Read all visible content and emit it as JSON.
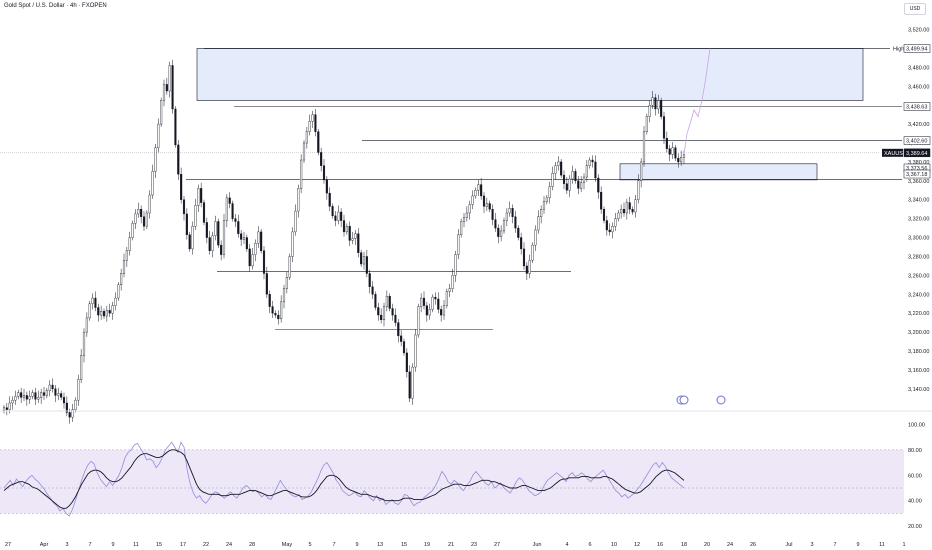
{
  "header": {
    "title": "Gold Spot / U.S. Dollar · 4h · FXOPEN",
    "currency": "USD"
  },
  "colors": {
    "candle": "#131722",
    "zone_fill": "#dbe4f8",
    "zone_stroke": "#131722",
    "rsi_line": "#9c8ad6",
    "rsi_ma": "#131722",
    "rsi_band": "#ede7f8",
    "projection": "#c9a4e8"
  },
  "chart_data": [
    {
      "type": "candlestick",
      "title": "Gold Spot / U.S. Dollar · 4h · FXOPEN",
      "ylim": [
        3125,
        3528
      ],
      "yticks": [
        3140,
        3160,
        3180,
        3200,
        3220,
        3240,
        3260,
        3280,
        3300,
        3320,
        3340,
        3360,
        3380,
        3400,
        3420,
        3440,
        3460,
        3480,
        3500,
        3520
      ],
      "ytick_labels": [
        "3,140.00",
        "3,160.00",
        "3,180.00",
        "3,200.00",
        "3,220.00",
        "3,240.00",
        "3,260.00",
        "3,280.00",
        "3,300.00",
        "3,320.00",
        "3,340.00",
        "3,360.00",
        "3,380.00",
        "3,400.00",
        "3,420.00",
        "3,440.00",
        "3,460.00",
        "3,480.00",
        "3,500.00",
        "3,520.00"
      ],
      "xtick_labels": [
        "27",
        "Apr",
        "3",
        "7",
        "9",
        "11",
        "15",
        "17",
        "22",
        "24",
        "28",
        "May",
        "5",
        "7",
        "9",
        "13",
        "15",
        "19",
        "21",
        "23",
        "27",
        "Jun",
        "4",
        "6",
        "10",
        "12",
        "16",
        "18",
        "20",
        "24",
        "26",
        "Jul",
        "3",
        "7",
        "9",
        "11",
        "1"
      ],
      "xtick_positions": [
        8,
        44,
        67,
        90,
        113,
        136,
        159,
        183,
        206,
        229,
        252,
        287,
        310,
        334,
        357,
        380,
        404,
        427,
        451,
        474,
        497,
        537,
        567,
        590,
        614,
        637,
        660,
        684,
        707,
        730,
        753,
        789,
        812,
        835,
        858,
        882,
        904
      ],
      "close_series": [
        3120,
        3118,
        3125,
        3128,
        3132,
        3136,
        3131,
        3133,
        3129,
        3132,
        3136,
        3129,
        3131,
        3136,
        3133,
        3138,
        3144,
        3140,
        3133,
        3135,
        3131,
        3125,
        3115,
        3110,
        3118,
        3128,
        3150,
        3175,
        3200,
        3215,
        3230,
        3236,
        3226,
        3218,
        3222,
        3217,
        3223,
        3220,
        3228,
        3236,
        3250,
        3262,
        3276,
        3286,
        3300,
        3315,
        3325,
        3330,
        3322,
        3312,
        3326,
        3345,
        3370,
        3395,
        3420,
        3445,
        3462,
        3455,
        3482,
        3436,
        3398,
        3367,
        3340,
        3325,
        3303,
        3288,
        3312,
        3334,
        3352,
        3337,
        3316,
        3300,
        3286,
        3302,
        3317,
        3292,
        3282,
        3318,
        3342,
        3336,
        3320,
        3317,
        3304,
        3298,
        3300,
        3288,
        3270,
        3282,
        3294,
        3306,
        3286,
        3262,
        3240,
        3227,
        3220,
        3218,
        3214,
        3232,
        3246,
        3258,
        3280,
        3306,
        3328,
        3352,
        3382,
        3400,
        3412,
        3423,
        3430,
        3412,
        3390,
        3376,
        3361,
        3347,
        3333,
        3323,
        3318,
        3327,
        3318,
        3306,
        3312,
        3297,
        3299,
        3304,
        3284,
        3272,
        3280,
        3262,
        3248,
        3240,
        3226,
        3218,
        3213,
        3227,
        3238,
        3225,
        3218,
        3210,
        3196,
        3190,
        3178,
        3158,
        3130,
        3163,
        3197,
        3227,
        3236,
        3228,
        3218,
        3224,
        3237,
        3235,
        3224,
        3218,
        3228,
        3243,
        3246,
        3260,
        3282,
        3303,
        3317,
        3321,
        3326,
        3335,
        3344,
        3350,
        3356,
        3344,
        3333,
        3336,
        3330,
        3319,
        3310,
        3301,
        3307,
        3318,
        3326,
        3331,
        3322,
        3310,
        3300,
        3288,
        3270,
        3262,
        3276,
        3292,
        3308,
        3322,
        3330,
        3338,
        3342,
        3354,
        3368,
        3376,
        3380,
        3366,
        3357,
        3350,
        3362,
        3370,
        3360,
        3352,
        3358,
        3364,
        3376,
        3382,
        3380,
        3363,
        3348,
        3330,
        3318,
        3308,
        3306,
        3312,
        3320,
        3326,
        3330,
        3326,
        3337,
        3330,
        3327,
        3340,
        3360,
        3380,
        3412,
        3428,
        3440,
        3448,
        3436,
        3445,
        3428,
        3405,
        3394,
        3388,
        3395,
        3384,
        3380,
        3385,
        3388
      ],
      "zones": [
        {
          "top": 3500,
          "bottom": 3445
        },
        {
          "top": 3378,
          "bottom": 3361
        }
      ],
      "horizontal_levels": [
        3500,
        3438.63,
        3402.6,
        3361.5,
        3264,
        3203
      ],
      "price_labels": [
        {
          "text": "3,499.94",
          "value": 3499.94,
          "prefix": "High"
        },
        {
          "text": "3,438.63",
          "value": 3438.63
        },
        {
          "text": "3,402.60",
          "value": 3402.6
        },
        {
          "text": "3,389.64",
          "value": 3389.64,
          "symbol": "XAUUSD"
        },
        {
          "text": "3,373.56",
          "value": 3373.56
        },
        {
          "text": "3,367.18",
          "value": 3367.18
        }
      ],
      "projection": [
        3388,
        3410,
        3420,
        3435,
        3428,
        3445,
        3470,
        3500
      ]
    },
    {
      "type": "line",
      "title": "RSI",
      "ylim": [
        17,
        105
      ],
      "yticks": [
        20,
        40,
        60,
        80,
        100
      ],
      "ytick_labels": [
        "20.00",
        "40.00",
        "60.00",
        "80.00",
        "100.00"
      ],
      "band": [
        30,
        80
      ],
      "midline": 50,
      "series": [
        {
          "values": [
            50,
            53,
            56,
            52,
            57,
            54,
            51,
            55,
            58,
            60,
            57,
            55,
            52,
            49,
            45,
            42,
            38,
            36,
            32,
            34,
            30,
            28,
            33,
            40,
            48,
            56,
            63,
            68,
            71,
            69,
            62,
            57,
            54,
            51,
            55,
            52,
            56,
            60,
            66,
            74,
            78,
            80,
            84,
            85,
            81,
            77,
            72,
            73,
            71,
            66,
            69,
            74,
            80,
            83,
            86,
            82,
            78,
            86,
            82,
            64,
            53,
            46,
            42,
            44,
            40,
            38,
            41,
            45,
            47,
            46,
            44,
            42,
            45,
            47,
            44,
            42,
            46,
            50,
            52,
            50,
            47,
            48,
            46,
            43,
            45,
            42,
            41,
            46,
            51,
            56,
            52,
            49,
            46,
            44,
            43,
            45,
            41,
            42,
            44,
            47,
            52,
            57,
            63,
            68,
            70,
            66,
            62,
            56,
            53,
            48,
            46,
            44,
            45,
            47,
            44,
            43,
            48,
            45,
            42,
            40,
            44,
            40,
            42,
            37,
            39,
            41,
            38,
            37,
            40,
            45,
            44,
            40,
            36,
            38,
            39,
            42,
            44,
            46,
            48,
            52,
            57,
            63,
            60,
            55,
            53,
            56,
            54,
            50,
            48,
            52,
            55,
            60,
            63,
            60,
            57,
            54,
            52,
            55,
            50,
            52,
            54,
            50,
            48,
            46,
            50,
            55,
            58,
            56,
            52,
            48,
            46,
            44,
            45,
            47,
            52,
            56,
            58,
            60,
            62,
            60,
            58,
            55,
            60,
            62,
            59,
            60,
            62,
            60,
            57,
            55,
            58,
            60,
            62,
            64,
            60,
            56,
            52,
            48,
            46,
            43,
            45,
            42,
            44,
            46,
            49,
            52,
            56,
            60,
            64,
            68,
            70,
            66,
            70,
            67,
            62,
            58,
            56,
            54,
            52,
            50
          ]
        },
        {
          "values": [
            48,
            50,
            52,
            53,
            54,
            55,
            55,
            54,
            53,
            51,
            50,
            49,
            47,
            45,
            43,
            41,
            39,
            37,
            35,
            34,
            34,
            36,
            39,
            43,
            48,
            53,
            57,
            61,
            63,
            64,
            64,
            63,
            61,
            58,
            56,
            55,
            55,
            56,
            58,
            61,
            64,
            67,
            71,
            74,
            76,
            77,
            77,
            76,
            75,
            74,
            74,
            75,
            77,
            79,
            80,
            80,
            79,
            78,
            76,
            71,
            65,
            59,
            53,
            49,
            47,
            46,
            45,
            45,
            45,
            45,
            44,
            44,
            44,
            45,
            45,
            45,
            45,
            46,
            47,
            48,
            48,
            48,
            47,
            46,
            45,
            44,
            44,
            45,
            46,
            47,
            48,
            48,
            47,
            46,
            45,
            44,
            43,
            43,
            43,
            44,
            46,
            49,
            53,
            56,
            59,
            60,
            60,
            59,
            57,
            54,
            51,
            49,
            48,
            47,
            46,
            45,
            45,
            45,
            44,
            43,
            43,
            42,
            41,
            40,
            40,
            40,
            40,
            40,
            41,
            42,
            42,
            42,
            41,
            41,
            41,
            41,
            42,
            43,
            44,
            45,
            47,
            49,
            50,
            51,
            52,
            53,
            53,
            53,
            52,
            52,
            52,
            53,
            54,
            55,
            56,
            56,
            56,
            55,
            55,
            54,
            53,
            52,
            51,
            50,
            50,
            50,
            51,
            52,
            52,
            51,
            50,
            49,
            48,
            48,
            48,
            49,
            50,
            52,
            54,
            56,
            57,
            57,
            58,
            58,
            58,
            58,
            59,
            59,
            59,
            58,
            58,
            58,
            58,
            59,
            59,
            58,
            57,
            55,
            53,
            51,
            49,
            48,
            47,
            46,
            46,
            47,
            49,
            51,
            53,
            56,
            59,
            61,
            63,
            64,
            64,
            63,
            62,
            60,
            58,
            56
          ]
        }
      ]
    }
  ]
}
